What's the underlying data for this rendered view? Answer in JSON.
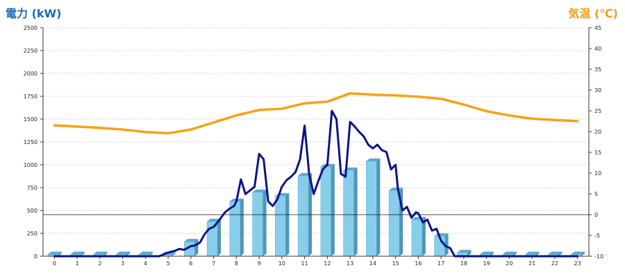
{
  "chart_data": {
    "type": "bar",
    "title": "",
    "left_axis_label": "電力 (kW)",
    "right_axis_label": "気温 (℃)",
    "ylim_left": [
      0,
      2500
    ],
    "ylim_right": [
      -10,
      45
    ],
    "left_ticks": [
      0,
      250,
      500,
      750,
      1000,
      1250,
      1500,
      1750,
      2000,
      2250,
      2500
    ],
    "right_ticks": [
      -10,
      -5,
      0,
      5,
      10,
      15,
      20,
      25,
      30,
      35,
      40,
      45
    ],
    "categories": [
      "0",
      "1",
      "2",
      "3",
      "4",
      "5",
      "6",
      "7",
      "8",
      "9",
      "10",
      "11",
      "12",
      "13",
      "14",
      "15",
      "16",
      "17",
      "18",
      "19",
      "20",
      "21",
      "22",
      "23"
    ],
    "grid": true,
    "colors": {
      "left_title": "#1a6bb8",
      "right_title": "#f39c12",
      "bars": "#87ceeb",
      "power_line": "#0a128a",
      "temp_line": "#f5a214"
    },
    "series": [
      {
        "kind": "bar",
        "axis": "left",
        "values": [
          20,
          20,
          20,
          20,
          20,
          20,
          160,
          380,
          600,
          700,
          660,
          880,
          980,
          940,
          1040,
          720,
          400,
          220,
          40,
          20,
          20,
          20,
          20,
          20
        ]
      },
      {
        "kind": "line",
        "axis": "left",
        "x": [
          0,
          4.6,
          5,
          5.3,
          5.5,
          5.7,
          6,
          6.2,
          6.4,
          6.6,
          6.8,
          7,
          7.2,
          7.5,
          7.7,
          7.9,
          8,
          8.2,
          8.4,
          8.6,
          8.8,
          9,
          9.2,
          9.4,
          9.6,
          9.8,
          10,
          10.2,
          10.4,
          10.6,
          10.8,
          11,
          11.2,
          11.4,
          11.6,
          11.8,
          12,
          12.2,
          12.4,
          12.6,
          12.8,
          13,
          13.2,
          13.4,
          13.6,
          13.8,
          14,
          14.2,
          14.4,
          14.6,
          14.8,
          15,
          15.1,
          15.3,
          15.5,
          15.7,
          15.9,
          16,
          16.2,
          16.4,
          16.6,
          16.8,
          17,
          17.2,
          17.4,
          17.6,
          23
        ],
        "values": [
          0,
          0,
          40,
          60,
          80,
          70,
          110,
          120,
          150,
          240,
          300,
          320,
          380,
          480,
          520,
          550,
          600,
          840,
          680,
          720,
          760,
          1120,
          1060,
          600,
          550,
          620,
          760,
          830,
          870,
          920,
          1060,
          1430,
          900,
          680,
          820,
          950,
          1000,
          1590,
          1500,
          900,
          870,
          1470,
          1420,
          1360,
          1310,
          1220,
          1180,
          1220,
          1160,
          1140,
          950,
          1000,
          740,
          500,
          540,
          420,
          480,
          470,
          370,
          400,
          280,
          300,
          170,
          110,
          90,
          0,
          0
        ]
      },
      {
        "kind": "line",
        "axis": "right",
        "x": [
          0,
          1,
          2,
          3,
          4,
          5,
          6,
          7,
          8,
          9,
          10,
          11,
          12,
          13,
          14,
          15,
          16,
          17,
          18,
          19,
          20,
          21,
          22,
          23
        ],
        "values": [
          21.5,
          21.2,
          20.9,
          20.5,
          19.9,
          19.6,
          20.5,
          22.2,
          23.9,
          25.2,
          25.5,
          26.8,
          27.2,
          29.2,
          28.9,
          28.7,
          28.4,
          27.9,
          26.5,
          24.9,
          23.9,
          23.1,
          22.8,
          22.5
        ]
      }
    ]
  }
}
